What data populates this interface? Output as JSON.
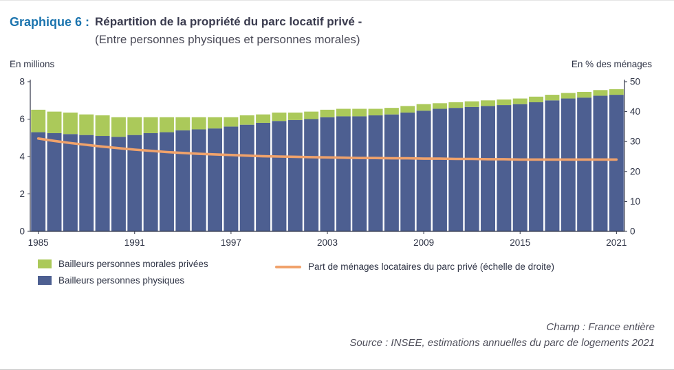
{
  "header": {
    "label": "Graphique 6 :",
    "title_line1": "Répartition de la propriété du parc locatif privé -",
    "title_line2": "(Entre personnes physiques et personnes morales)"
  },
  "axes": {
    "left_unit": "En millions",
    "right_unit": "En % des ménages"
  },
  "legend": [
    {
      "label": "Bailleurs personnes morales privées"
    },
    {
      "label": "Bailleurs personnes physiques"
    },
    {
      "label": "Part de ménages locataires du parc privé (échelle de droite)"
    }
  ],
  "footer": {
    "champ": "Champ : France entière",
    "source": "Source : INSEE, estimations annuelles du parc de logements 2021"
  },
  "colors": {
    "title_accent": "#1b74ae",
    "bar_blue": "#4d5f91",
    "bar_green": "#abc95a",
    "line_orange": "#f0a26b",
    "axis_text": "#2e3345"
  },
  "chart_data": {
    "type": "bar",
    "subtype": "stacked-bars-with-right-axis-line",
    "title": "Répartition de la propriété du parc locatif privé (Entre personnes physiques et personnes morales)",
    "years": [
      1985,
      1986,
      1987,
      1988,
      1989,
      1990,
      1991,
      1992,
      1993,
      1994,
      1995,
      1996,
      1997,
      1998,
      1999,
      2000,
      2001,
      2002,
      2003,
      2004,
      2005,
      2006,
      2007,
      2008,
      2009,
      2010,
      2011,
      2012,
      2013,
      2014,
      2015,
      2016,
      2017,
      2018,
      2019,
      2020,
      2021
    ],
    "series": [
      {
        "name": "Bailleurs personnes physiques",
        "type": "bar",
        "axis": "left",
        "color": "#4d5f91",
        "values": [
          5.3,
          5.25,
          5.2,
          5.15,
          5.1,
          5.05,
          5.15,
          5.25,
          5.3,
          5.4,
          5.45,
          5.5,
          5.6,
          5.7,
          5.8,
          5.9,
          5.95,
          6.0,
          6.1,
          6.15,
          6.15,
          6.2,
          6.25,
          6.35,
          6.45,
          6.55,
          6.6,
          6.65,
          6.7,
          6.75,
          6.8,
          6.9,
          7.0,
          7.1,
          7.15,
          7.25,
          7.3
        ]
      },
      {
        "name": "Bailleurs personnes morales privées",
        "type": "bar",
        "axis": "left",
        "color": "#abc95a",
        "values": [
          1.2,
          1.15,
          1.15,
          1.1,
          1.1,
          1.05,
          0.95,
          0.85,
          0.8,
          0.7,
          0.65,
          0.6,
          0.5,
          0.5,
          0.45,
          0.45,
          0.4,
          0.4,
          0.4,
          0.4,
          0.4,
          0.35,
          0.35,
          0.35,
          0.35,
          0.3,
          0.3,
          0.3,
          0.3,
          0.3,
          0.3,
          0.3,
          0.3,
          0.3,
          0.3,
          0.3,
          0.3
        ]
      },
      {
        "name": "Part de ménages locataires du parc privé (échelle de droite)",
        "type": "line",
        "axis": "right",
        "color": "#f0a26b",
        "values": [
          31.0,
          30.2,
          29.5,
          28.9,
          28.3,
          27.8,
          27.3,
          26.9,
          26.5,
          26.2,
          25.9,
          25.7,
          25.5,
          25.3,
          25.1,
          25.0,
          24.9,
          24.8,
          24.7,
          24.6,
          24.5,
          24.5,
          24.4,
          24.4,
          24.3,
          24.3,
          24.2,
          24.2,
          24.1,
          24.1,
          24.0,
          24.0,
          24.0,
          24.0,
          24.0,
          24.0,
          24.0
        ]
      }
    ],
    "left_axis": {
      "label": "En millions",
      "min": 0,
      "max": 8,
      "ticks": [
        0,
        2,
        4,
        6,
        8
      ]
    },
    "right_axis": {
      "label": "En % des ménages",
      "min": 0,
      "max": 50,
      "ticks": [
        0,
        10,
        20,
        30,
        40,
        50
      ]
    },
    "x_tick_labels": [
      1985,
      1991,
      1997,
      2003,
      2009,
      2015,
      2021
    ],
    "grid": false,
    "legend_position": "bottom"
  }
}
